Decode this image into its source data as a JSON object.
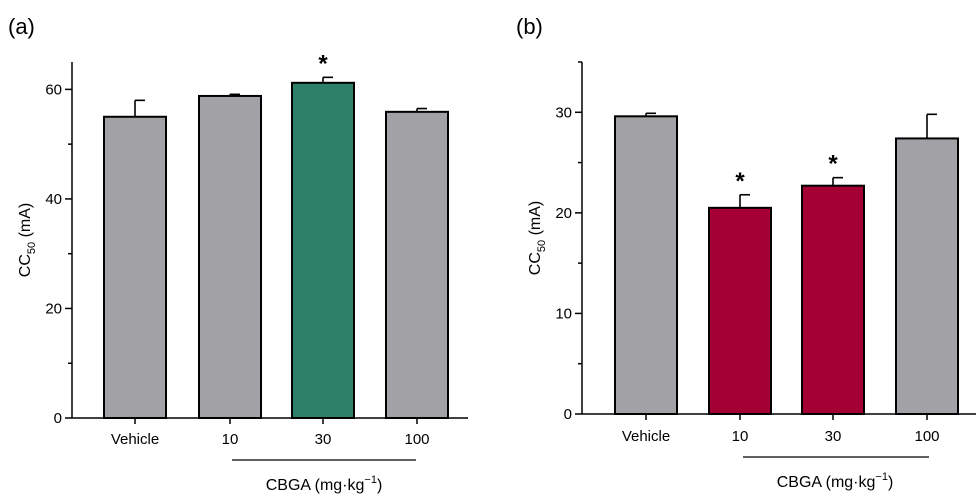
{
  "chart_data": [
    {
      "type": "bar",
      "panel_label": "(a)",
      "ylabel": "CC",
      "ylabel_sub": "50",
      "ylabel_unit": " (mA)",
      "ylim": [
        0,
        65
      ],
      "yticks": [
        0,
        20,
        40,
        60
      ],
      "categories": [
        "Vehicle",
        "10",
        "30",
        "100"
      ],
      "values": [
        55.0,
        58.8,
        61.2,
        55.9
      ],
      "errors": [
        3.0,
        0.3,
        1.0,
        0.6
      ],
      "colors": [
        "#a2a1a6",
        "#a2a1a6",
        "#2d8067",
        "#a2a1a6"
      ],
      "significance": [
        "",
        "",
        "*",
        ""
      ],
      "group_label": "CBGA (mg·kg",
      "group_label_sup": "−1",
      "group_label_end": ")"
    },
    {
      "type": "bar",
      "panel_label": "(b)",
      "ylabel": "CC",
      "ylabel_sub": "50",
      "ylabel_unit": " (mA)",
      "ylim": [
        0,
        35
      ],
      "yticks": [
        0,
        10,
        20,
        30
      ],
      "categories": [
        "Vehicle",
        "10",
        "30",
        "100"
      ],
      "values": [
        29.6,
        20.5,
        22.7,
        27.4
      ],
      "errors": [
        0.3,
        1.3,
        0.8,
        2.4
      ],
      "colors": [
        "#a2a1a6",
        "#a50034",
        "#a50034",
        "#a2a1a6"
      ],
      "significance": [
        "",
        "*",
        "*",
        ""
      ],
      "group_label": "CBGA (mg·kg",
      "group_label_sup": "−1",
      "group_label_end": ")"
    }
  ]
}
